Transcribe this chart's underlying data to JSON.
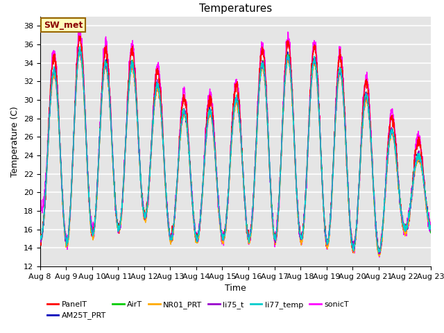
{
  "title": "Temperatures",
  "xlabel": "Time",
  "ylabel": "Temperature (C)",
  "ylim": [
    12,
    39
  ],
  "ytick_vals": [
    12,
    14,
    16,
    18,
    20,
    22,
    24,
    26,
    28,
    30,
    32,
    34,
    36,
    38
  ],
  "xtick_labels": [
    "Aug 8",
    "Aug 9",
    "Aug 10",
    "Aug 11",
    "Aug 12",
    "Aug 13",
    "Aug 14",
    "Aug 15",
    "Aug 16",
    "Aug 17",
    "Aug 18",
    "Aug 19",
    "Aug 20",
    "Aug 21",
    "Aug 22",
    "Aug 23"
  ],
  "series_names": [
    "PanelT",
    "AM25T_PRT",
    "AirT",
    "NR01_PRT",
    "li75_t",
    "li77_temp",
    "sonicT"
  ],
  "series_colors": [
    "#ff0000",
    "#0000bb",
    "#00cc00",
    "#ffaa00",
    "#9900cc",
    "#00cccc",
    "#ff00ff"
  ],
  "series_linewidths": [
    1.0,
    1.0,
    1.0,
    1.0,
    1.0,
    1.0,
    1.0
  ],
  "annotation_text": "SW_met",
  "bg_color": "#e5e5e5",
  "grid_color": "#ffffff",
  "fig_bg_color": "#ffffff",
  "n_days": 15,
  "points_per_day": 144,
  "title_fontsize": 11,
  "axis_fontsize": 9,
  "tick_fontsize": 8
}
